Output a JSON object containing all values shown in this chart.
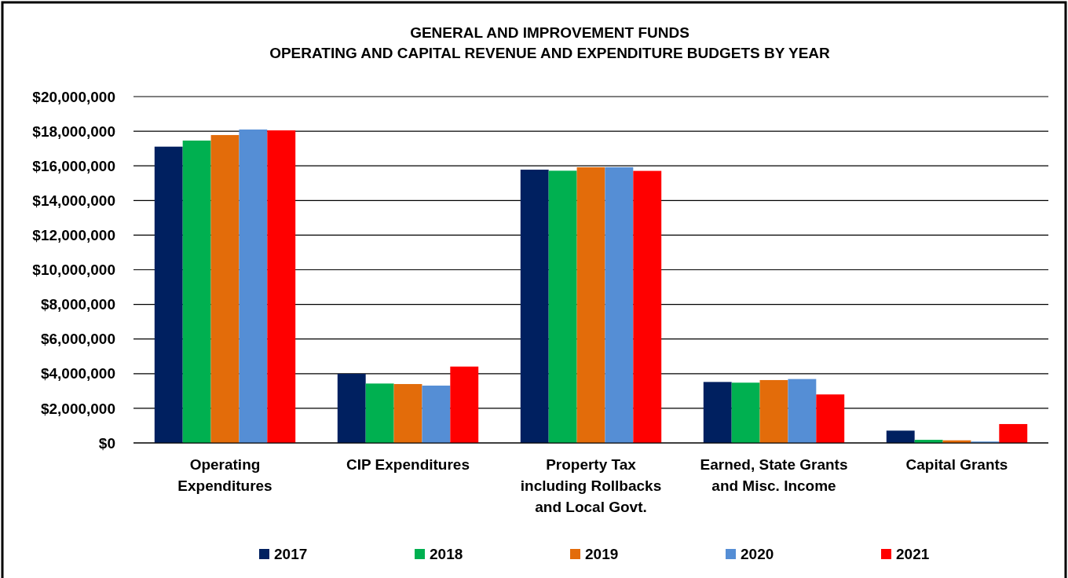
{
  "chart_data": {
    "type": "bar",
    "title": "GENERAL AND IMPROVEMENT FUNDS\nOPERATING AND CAPITAL REVENUE AND EXPENDITURE BUDGETS BY YEAR",
    "categories": [
      "Operating Expenditures",
      "CIP Expenditures",
      "Property Tax including Rollbacks and Local Govt.",
      "Earned, State Grants and Misc. Income",
      "Capital Grants"
    ],
    "series": [
      {
        "name": "2017",
        "color": "#002060",
        "values": [
          17110000,
          3990000,
          15780000,
          3520000,
          710000
        ]
      },
      {
        "name": "2018",
        "color": "#00b050",
        "values": [
          17460000,
          3430000,
          15720000,
          3480000,
          180000
        ]
      },
      {
        "name": "2019",
        "color": "#e36c0a",
        "values": [
          17780000,
          3400000,
          15920000,
          3630000,
          150000
        ]
      },
      {
        "name": "2020",
        "color": "#558ed5",
        "values": [
          18100000,
          3310000,
          15920000,
          3690000,
          80000
        ]
      },
      {
        "name": "2021",
        "color": "#ff0000",
        "values": [
          18050000,
          4410000,
          15710000,
          2800000,
          1090000
        ]
      }
    ],
    "ylim": [
      0,
      20000000
    ],
    "yticks": [
      {
        "value": 0,
        "label": "$0"
      },
      {
        "value": 2000000,
        "label": "$2,000,000"
      },
      {
        "value": 4000000,
        "label": "$4,000,000"
      },
      {
        "value": 6000000,
        "label": "$6,000,000"
      },
      {
        "value": 8000000,
        "label": "$8,000,000"
      },
      {
        "value": 10000000,
        "label": "$10,000,000"
      },
      {
        "value": 12000000,
        "label": "$12,000,000"
      },
      {
        "value": 14000000,
        "label": "$14,000,000"
      },
      {
        "value": 16000000,
        "label": "$16,000,000"
      },
      {
        "value": 18000000,
        "label": "$18,000,000"
      },
      {
        "value": 20000000,
        "label": "$20,000,000"
      }
    ],
    "grid": "y",
    "legend": "bottom"
  }
}
